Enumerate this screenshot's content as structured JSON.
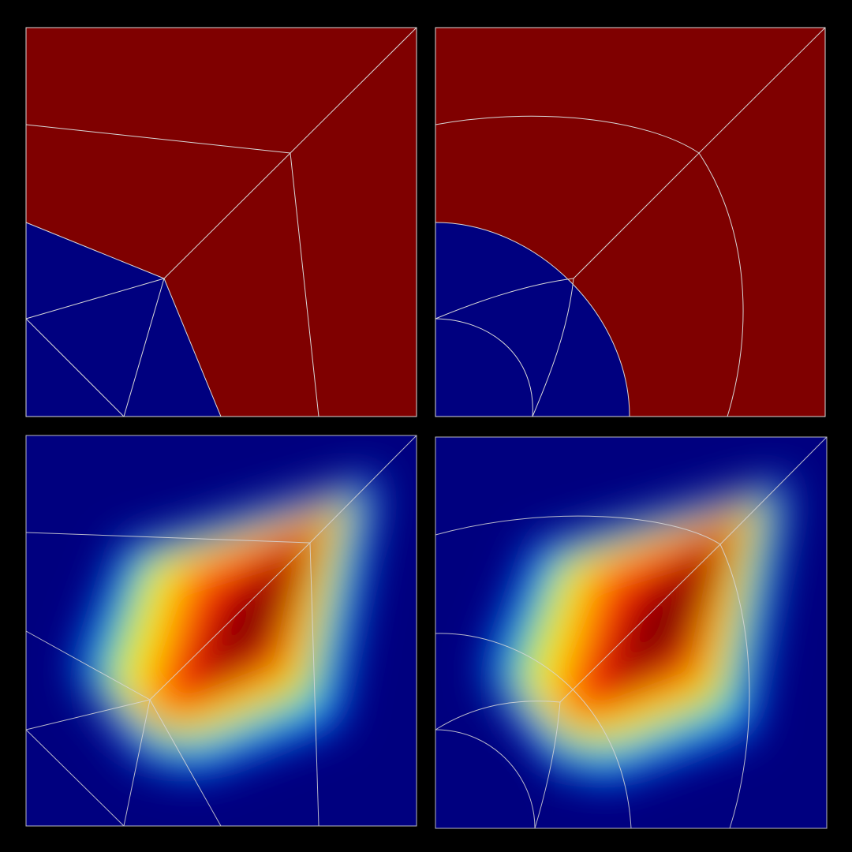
{
  "figure": {
    "layout": "2x2",
    "background_color": "#000000",
    "mesh_line_color": "#d8d8d8",
    "panels": [
      {
        "id": "top-left",
        "kind": "material-map",
        "mesh": "straight",
        "colors": {
          "inner": "#00007f",
          "outer": "#7f0000"
        }
      },
      {
        "id": "top-right",
        "kind": "material-map",
        "mesh": "curved",
        "colors": {
          "inner": "#00007f",
          "outer": "#7f0000"
        }
      },
      {
        "id": "bottom-left",
        "kind": "scalar-field",
        "mesh": "straight",
        "colormap": "jet"
      },
      {
        "id": "bottom-right",
        "kind": "scalar-field",
        "mesh": "curved",
        "colormap": "jet"
      }
    ]
  }
}
